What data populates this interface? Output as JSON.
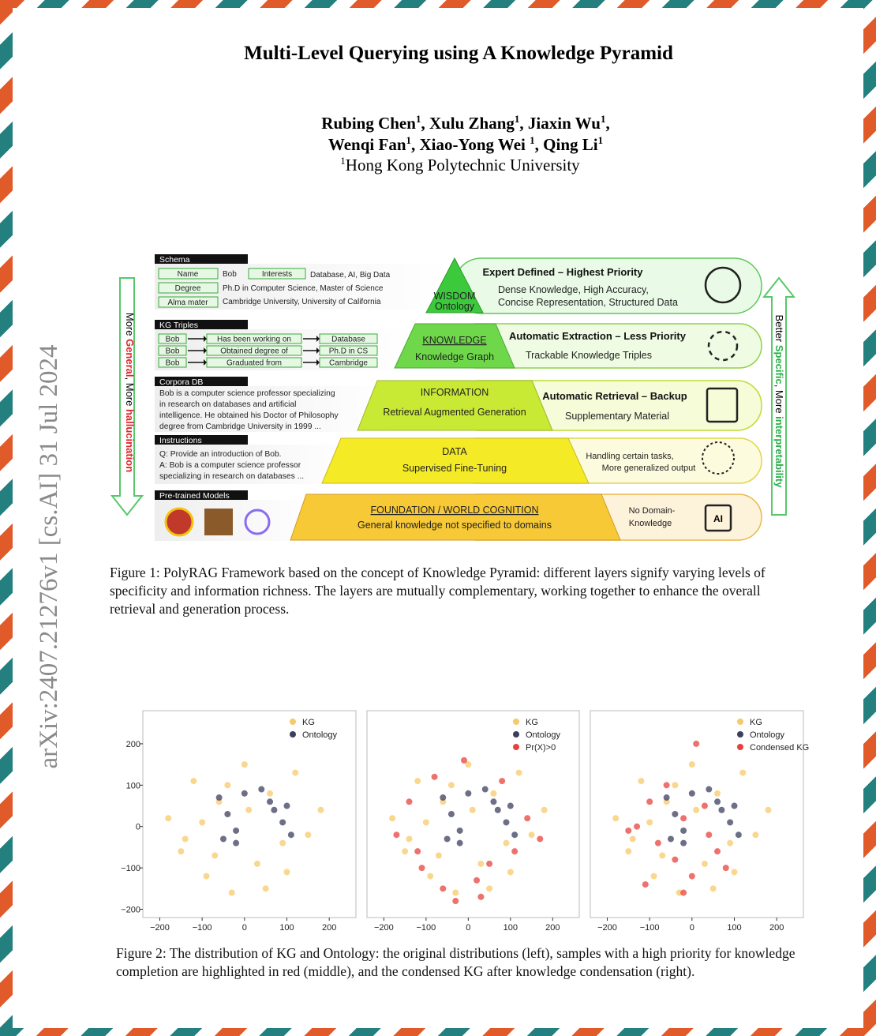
{
  "side_stamp": "arXiv:2407.21276v1  [cs.AI]  31 Jul 2024",
  "header": {
    "title": "Multi-Level Querying using A Knowledge Pyramid",
    "authors_line1": [
      {
        "name": "Rubing Chen",
        "sup": "1"
      },
      {
        "name": ", Xulu Zhang",
        "sup": "1"
      },
      {
        "name": ", Jiaxin Wu",
        "sup": "1"
      },
      {
        "name": ",",
        "sup": ""
      }
    ],
    "authors_line2": [
      {
        "name": "Wenqi Fan",
        "sup": "1"
      },
      {
        "name": ", Xiao-Yong Wei ",
        "sup": "1"
      },
      {
        "name": ", Qing Li",
        "sup": "1"
      }
    ],
    "affiliation_sup": "1",
    "affiliation": "Hong Kong Polytechnic University"
  },
  "figure1": {
    "schema": {
      "title": "Schema",
      "rows": [
        [
          "Name",
          "Bob",
          "Interests",
          "Database, AI, Big Data"
        ],
        [
          "Degree",
          "Ph.D in Computer Science, Master of Science"
        ],
        [
          "Alma mater",
          "Cambridge University, University of California"
        ]
      ]
    },
    "kg_triples": {
      "title": "KG Triples",
      "rows": [
        [
          "Bob",
          "Has been working on",
          "Database"
        ],
        [
          "Bob",
          "Obtained degree of",
          "Ph.D in CS"
        ],
        [
          "Bob",
          "Graduated from",
          "Cambridge"
        ]
      ]
    },
    "corpora": {
      "title": "Corpora DB",
      "lines": [
        "Bob is a computer science professor specializing",
        "in research on databases and artificial",
        "intelligence. He obtained his Doctor of Philosophy",
        "degree from Cambridge University in 1999 ..."
      ]
    },
    "instructions": {
      "title": "Instructions",
      "lines": [
        "Q: Provide an introduction of Bob.",
        "A: Bob is a computer science professor",
        "specializing in research on databases ..."
      ]
    },
    "pretrained": {
      "title": "Pre-trained Models"
    },
    "layers": [
      {
        "name": "WISDOM",
        "sub": "Ontology",
        "heading": "Expert Defined – Highest Priority",
        "desc": [
          "Dense Knowledge, High Accuracy,",
          "Concise Representation, Structured Data"
        ]
      },
      {
        "name": "KNOWLEDGE",
        "sub": "Knowledge Graph",
        "heading": "Automatic Extraction – Less Priority",
        "desc": [
          "Trackable Knowledge Triples"
        ]
      },
      {
        "name": "INFORMATION",
        "sub": "Retrieval Augmented Generation",
        "heading": "Automatic Retrieval – Backup",
        "desc": [
          "Supplementary Material"
        ]
      },
      {
        "name": "DATA",
        "sub": "Supervised Fine-Tuning",
        "desc": [
          "Handling certain tasks,",
          "More generalized output"
        ]
      },
      {
        "name": "FOUNDATION / WORLD COGNITION",
        "sub": "General knowledge not specified to domains",
        "desc": [
          "No Domain-",
          "Knowledge"
        ]
      }
    ],
    "ai_icon": "AI",
    "left_label": [
      "More ",
      "General",
      ", More ",
      "hallucination"
    ],
    "right_label": [
      "Better ",
      "Specific",
      ", More ",
      "interpretability"
    ],
    "caption": "Figure 1: PolyRAG Framework based on the concept of Knowledge Pyramid: different layers signify varying levels of specificity and information richness. The layers are mutually complementary, working together to enhance the overall retrieval and generation process."
  },
  "chart_data": [
    {
      "type": "scatter",
      "legend": "upper right",
      "xlim": [
        -240,
        263
      ],
      "ylim": [
        -220,
        280
      ],
      "xticks": [
        {
          "value": -200,
          "label": "−200"
        },
        {
          "value": -100,
          "label": "−100"
        },
        0,
        100,
        200
      ],
      "yticks": [
        {
          "value": -200,
          "label": "−200"
        },
        {
          "value": -100,
          "label": "−100"
        },
        0,
        100,
        200
      ],
      "series": [
        {
          "name": "KG",
          "color": "#f7c96a",
          "x": [
            -180,
            -150,
            -120,
            -90,
            -60,
            -30,
            0,
            30,
            60,
            90,
            120,
            150,
            180,
            -100,
            50,
            -40,
            -140,
            100,
            10,
            -70
          ],
          "y": [
            20,
            -60,
            110,
            -120,
            60,
            -160,
            150,
            -90,
            80,
            -40,
            130,
            -20,
            40,
            10,
            -150,
            100,
            -30,
            -110,
            40,
            -70
          ]
        },
        {
          "name": "Ontology",
          "color": "#3b3f5c",
          "x": [
            -60,
            -40,
            -20,
            0,
            40,
            70,
            90,
            110,
            -50,
            -20,
            60,
            100
          ],
          "y": [
            70,
            30,
            -10,
            80,
            90,
            40,
            10,
            -20,
            -30,
            -40,
            60,
            50
          ]
        }
      ]
    },
    {
      "type": "scatter",
      "legend": "upper right",
      "xlim": [
        -240,
        263
      ],
      "ylim": [
        -220,
        280
      ],
      "xticks": [
        {
          "value": -200,
          "label": "−200"
        },
        {
          "value": -100,
          "label": "−100"
        },
        0,
        100,
        200
      ],
      "series": [
        {
          "name": "KG",
          "color": "#f7c96a",
          "x": [
            -180,
            -150,
            -120,
            -90,
            -60,
            -30,
            0,
            30,
            60,
            90,
            120,
            150,
            180,
            -100,
            50,
            -40,
            -140,
            100,
            10,
            -70
          ],
          "y": [
            20,
            -60,
            110,
            -120,
            60,
            -160,
            150,
            -90,
            80,
            -40,
            130,
            -20,
            40,
            10,
            -150,
            100,
            -30,
            -110,
            40,
            -70
          ]
        },
        {
          "name": "Ontology",
          "color": "#3b3f5c",
          "x": [
            -60,
            -40,
            -20,
            0,
            40,
            70,
            90,
            110,
            -50,
            -20,
            60,
            100
          ],
          "y": [
            70,
            30,
            -10,
            80,
            90,
            40,
            10,
            -20,
            -30,
            -40,
            60,
            50
          ]
        },
        {
          "name": "Pr(X)>0",
          "color": "#e8413c",
          "x": [
            -170,
            -140,
            -110,
            -80,
            -60,
            -30,
            -10,
            20,
            50,
            80,
            110,
            140,
            170,
            -120,
            30
          ],
          "y": [
            -20,
            60,
            -100,
            120,
            -150,
            -180,
            160,
            -130,
            -90,
            110,
            -60,
            20,
            -30,
            -60,
            -170
          ]
        }
      ]
    },
    {
      "type": "scatter",
      "legend": "upper right",
      "xlim": [
        -240,
        263
      ],
      "ylim": [
        -220,
        280
      ],
      "xticks": [
        {
          "value": -200,
          "label": "−200"
        },
        {
          "value": -100,
          "label": "−100"
        },
        0,
        100,
        200
      ],
      "series": [
        {
          "name": "KG",
          "color": "#f7c96a",
          "x": [
            -180,
            -150,
            -120,
            -90,
            -60,
            -30,
            0,
            30,
            60,
            90,
            120,
            150,
            180,
            -100,
            50,
            -40,
            -140,
            100,
            10,
            -70
          ],
          "y": [
            20,
            -60,
            110,
            -120,
            60,
            -160,
            150,
            -90,
            80,
            -40,
            130,
            -20,
            40,
            10,
            -150,
            100,
            -30,
            -110,
            40,
            -70
          ]
        },
        {
          "name": "Ontology",
          "color": "#3b3f5c",
          "x": [
            -60,
            -40,
            -20,
            0,
            40,
            70,
            90,
            110,
            -50,
            -20,
            60,
            100
          ],
          "y": [
            70,
            30,
            -10,
            80,
            90,
            40,
            10,
            -20,
            -30,
            -40,
            60,
            50
          ]
        },
        {
          "name": "Condensed KG",
          "color": "#e8413c",
          "x": [
            -130,
            -100,
            -80,
            -60,
            -40,
            -20,
            0,
            30,
            60,
            -20,
            40,
            -150,
            10,
            80,
            -110
          ],
          "y": [
            0,
            60,
            -40,
            100,
            -80,
            20,
            -120,
            50,
            -60,
            -160,
            -20,
            -10,
            200,
            -100,
            -140
          ]
        }
      ]
    }
  ],
  "figure2": {
    "caption": "Figure 2: The distribution of KG and Ontology: the original distributions (left), samples with a high priority for knowledge completion are highlighted in red (middle), and the condensed KG after knowledge condensation (right)."
  }
}
